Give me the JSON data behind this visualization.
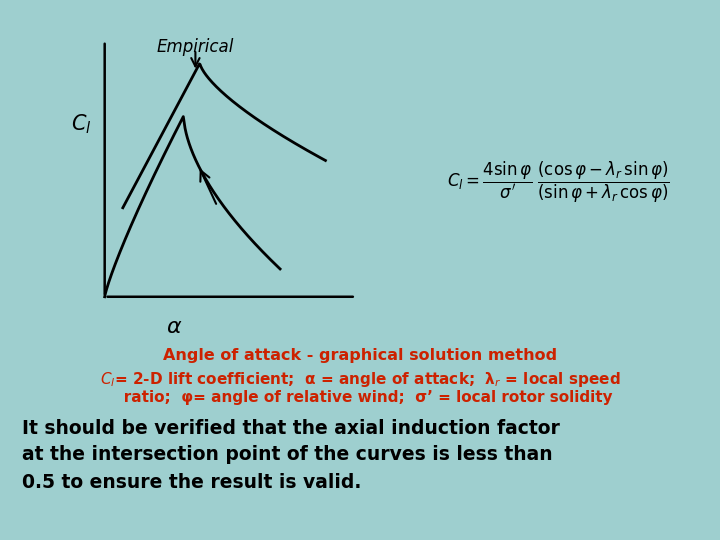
{
  "background_color": "#9ecfcf",
  "panel_color": "#f5f5f0",
  "orange_color": "#cc2200",
  "black_color": "#000000",
  "empirical_label": "Empirical",
  "cl_label": "$C_l$",
  "alpha_label": "$\\alpha$",
  "title_line1": "Angle of attack - graphical solution method",
  "subtitle_line1": "$C_l$= 2-D lift coefficient;  α = angle of attack;  λ$_r$ = local speed",
  "subtitle_line2": "ratio;  φ= angle of relative wind;  σ’ = local rotor solidity",
  "body_text_line1": "It should be verified that the axial induction factor",
  "body_text_line2": "at the intersection point of the curves is less than",
  "body_text_line3": "0.5 to ensure the result is valid."
}
